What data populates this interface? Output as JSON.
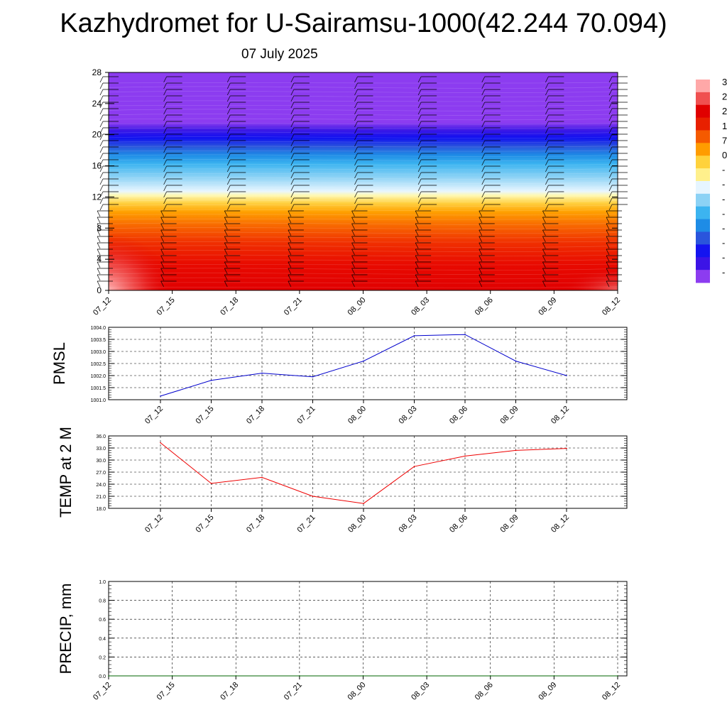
{
  "title": "Kazhydromet for U-Sairamsu-1000(42.244 70.094)",
  "subtitle": "07 July 2025",
  "chart_data": [
    {
      "type": "heatmap",
      "xlabel": "",
      "ylabel": "",
      "x_tick_labels": [
        "07_12",
        "07_15",
        "07_18",
        "07_21",
        "08_00",
        "08_03",
        "08_06",
        "08_09",
        "08_12"
      ],
      "y_tick_labels": [
        "0",
        "4",
        "8",
        "12",
        "16",
        "20",
        "24",
        "28"
      ],
      "ylim": [
        0,
        28
      ],
      "colorbar": {
        "colors": [
          "#ffa8a8",
          "#f05050",
          "#e00000",
          "#e82000",
          "#f55a00",
          "#ff9c00",
          "#ffd23c",
          "#fff08c",
          "#e6f5ff",
          "#8cd2f5",
          "#3cb4f0",
          "#1e8ce6",
          "#2a55dc",
          "#1414f0",
          "#3c14e6",
          "#8c3cf0"
        ],
        "tick_labels_visible": [
          "3",
          "2",
          "2",
          "1",
          "7",
          "0",
          "-",
          "-",
          "-",
          "-",
          "-",
          "-",
          "-",
          "-"
        ]
      }
    },
    {
      "type": "line",
      "ylabel": "PMSL",
      "categories": [
        "07_12",
        "07_15",
        "07_18",
        "07_21",
        "08_00",
        "08_03",
        "08_06",
        "08_09",
        "08_12"
      ],
      "values": [
        1001.15,
        1001.8,
        1002.1,
        1001.95,
        1002.6,
        1003.65,
        1003.7,
        1002.6,
        1002.0
      ],
      "y_tick_labels": [
        "1001.0",
        "1001.5",
        "1002.0",
        "1002.5",
        "1003.0",
        "1003.5",
        "1004.0"
      ],
      "ylim": [
        1001.0,
        1004.0
      ],
      "grid": true,
      "color": "#0000cc"
    },
    {
      "type": "line",
      "ylabel": "TEMP at 2 M",
      "categories": [
        "07_12",
        "07_15",
        "07_18",
        "07_21",
        "08_00",
        "08_03",
        "08_06",
        "08_09",
        "08_12"
      ],
      "values": [
        34.3,
        24.2,
        25.7,
        21.0,
        19.2,
        28.4,
        31.0,
        32.4,
        32.9
      ],
      "y_tick_labels": [
        "18.0",
        "21.0",
        "24.0",
        "27.0",
        "30.0",
        "33.0",
        "36.0"
      ],
      "ylim": [
        18.0,
        36.0
      ],
      "grid": true,
      "color": "#ee0000"
    },
    {
      "type": "line",
      "ylabel": "PRECIP, mm",
      "categories": [
        "07_12",
        "07_15",
        "07_18",
        "07_21",
        "08_00",
        "08_03",
        "08_06",
        "08_09",
        "08_12"
      ],
      "values": [
        0,
        0,
        0,
        0,
        0,
        0,
        0,
        0,
        0
      ],
      "y_tick_labels": [
        "0.0",
        "0.2",
        "0.4",
        "0.6",
        "0.8",
        "1.0"
      ],
      "ylim": [
        0.0,
        1.0
      ],
      "grid": true,
      "color": "#006400"
    }
  ]
}
